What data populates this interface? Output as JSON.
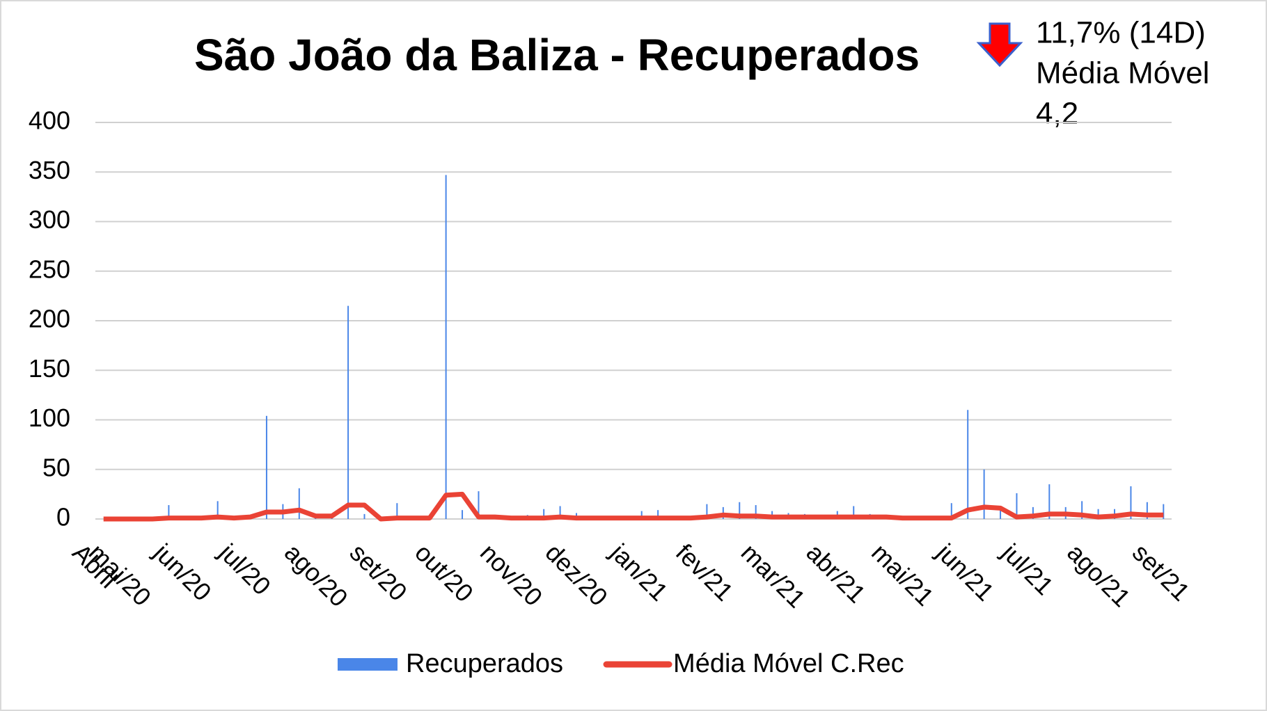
{
  "chart_data": {
    "type": "bar-line",
    "title": "São João da Baliza - Recuperados",
    "annotation": {
      "lines": [
        "11,7% (14D)",
        "Média Móvel",
        "4,2"
      ]
    },
    "categories": [
      "Abril",
      "mai/20",
      null,
      null,
      null,
      "jun/20",
      null,
      null,
      null,
      "jul/20",
      null,
      null,
      null,
      "ago/20",
      null,
      null,
      null,
      "set/20",
      null,
      null,
      null,
      "out/20",
      null,
      null,
      null,
      "nov/20",
      null,
      null,
      null,
      "dez/20",
      null,
      null,
      null,
      "jan/21",
      null,
      null,
      null,
      "fev/21",
      null,
      null,
      null,
      "mar/21",
      null,
      null,
      null,
      "abr/21",
      null,
      null,
      null,
      "mai/21",
      null,
      null,
      null,
      "jun/21",
      null,
      null,
      null,
      "jul/21",
      null,
      null,
      null,
      "ago/21",
      null,
      null,
      null,
      "set/21"
    ],
    "series": [
      {
        "name": "Recuperados",
        "type": "bar",
        "color": "#4a86e8",
        "values": [
          0,
          0,
          0,
          0,
          14,
          2,
          0,
          18,
          0,
          2,
          104,
          15,
          31,
          3,
          2,
          215,
          5,
          0,
          16,
          2,
          0,
          347,
          9,
          28,
          3,
          2,
          4,
          10,
          13,
          6,
          3,
          2,
          1,
          8,
          9,
          3,
          2,
          15,
          12,
          17,
          14,
          8,
          6,
          5,
          4,
          8,
          13,
          5,
          2,
          3,
          2,
          2,
          16,
          110,
          50,
          12,
          26,
          12,
          35,
          12,
          18,
          10,
          10,
          33,
          17,
          15
        ]
      },
      {
        "name": "Média Móvel C.Rec",
        "type": "line",
        "color": "#ea4335",
        "values": [
          0,
          0,
          0,
          0,
          1,
          1,
          1,
          2,
          1,
          2,
          7,
          7,
          9,
          3,
          3,
          14,
          14,
          0,
          1,
          1,
          1,
          24,
          25,
          2,
          2,
          1,
          1,
          1,
          2,
          1,
          1,
          1,
          1,
          1,
          1,
          1,
          1,
          2,
          4,
          3,
          3,
          2,
          2,
          2,
          2,
          2,
          2,
          2,
          2,
          1,
          1,
          1,
          1,
          9,
          12,
          11,
          2,
          3,
          5,
          5,
          4,
          2,
          3,
          5,
          4,
          4
        ]
      }
    ],
    "ylim": [
      0,
      400
    ],
    "yticks": [
      0,
      50,
      100,
      150,
      200,
      250,
      300,
      350,
      400
    ],
    "grid": true
  }
}
